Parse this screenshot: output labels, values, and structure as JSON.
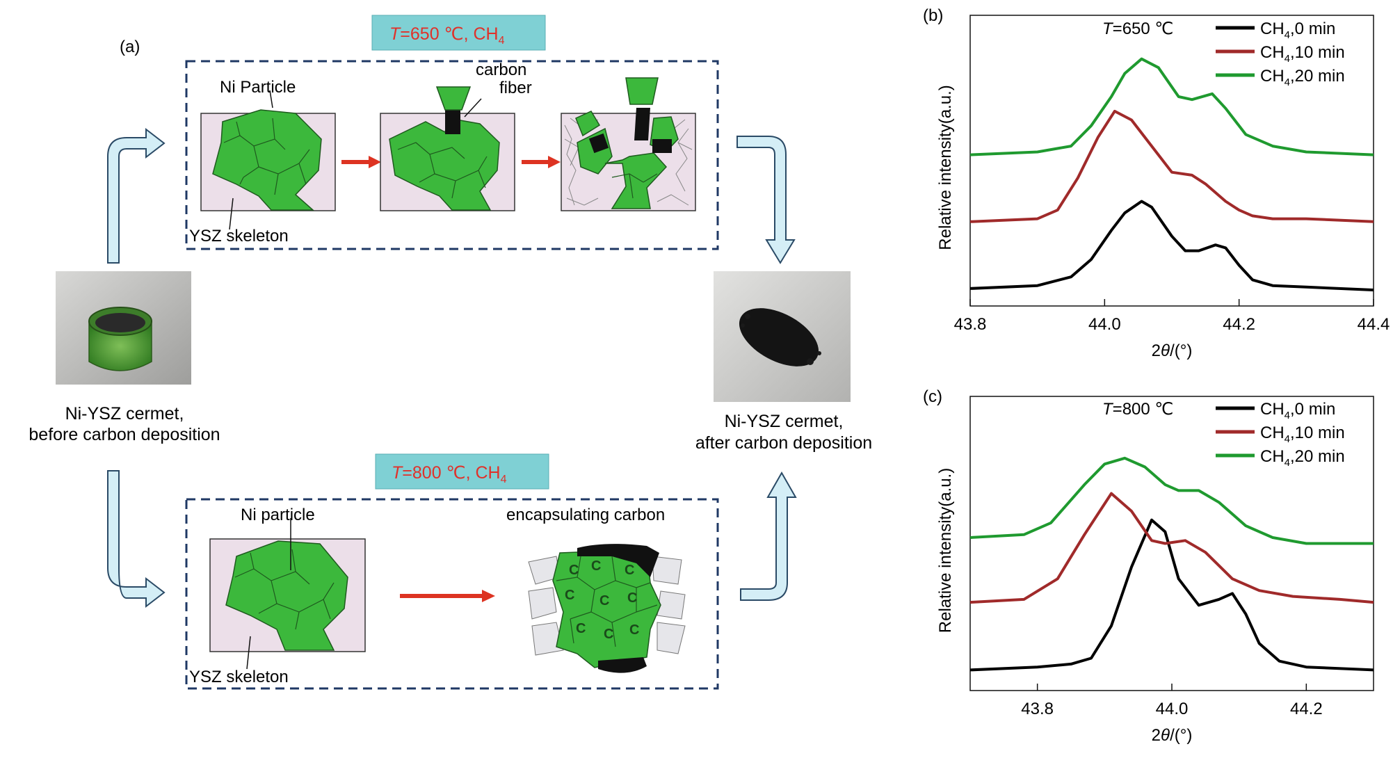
{
  "panel_a": {
    "label": "(a)",
    "top_condition": {
      "T": "T",
      "rest": "=650 ℃, CH",
      "sub": "4"
    },
    "bottom_condition": {
      "T": "T",
      "rest": "=800 ℃, CH",
      "sub": "4"
    },
    "top": {
      "ni_particle_label": "Ni Particle",
      "carbon_fiber_label_1": "carbon",
      "carbon_fiber_label_2": "fiber",
      "ysz_label": "YSZ skeleton"
    },
    "bottom": {
      "ni_particle_label": "Ni particle",
      "encapsulating_label": "encapsulating carbon",
      "ysz_label": "YSZ skeleton",
      "carbon_mark": "C"
    },
    "before_caption_1": "Ni-YSZ cermet,",
    "before_caption_2": "before carbon deposition",
    "after_caption_1": "Ni-YSZ cermet,",
    "after_caption_2": "after carbon deposition"
  },
  "colors": {
    "condition_box": "#7fd0d4",
    "condition_text": "#e0312a",
    "dashed_box": "#1f3864",
    "ni_green": "#3cb83c",
    "arrow_red": "#dd3322",
    "flow_arrow_fill": "#d4eef6",
    "flow_arrow_stroke": "#2a4a66"
  },
  "chart_data": [
    {
      "panel": "(b)",
      "type": "line",
      "condition_T": "T",
      "condition_rest": "=650 ℃",
      "xlabel_prefix": "2",
      "xlabel_theta": "θ",
      "xlabel_suffix": "/(°)",
      "ylabel": "Relative intensity(a.u.)",
      "xlim": [
        43.8,
        44.4
      ],
      "xticks": [
        "43.8",
        "44.0",
        "44.2",
        "44.4"
      ],
      "xtick_values": [
        43.8,
        44.0,
        44.2,
        44.4
      ],
      "ylim": [
        0,
        1
      ],
      "series": [
        {
          "name_base": "CH",
          "name_sub": "4",
          "name_tail": ",0 min",
          "color": "#000000",
          "x": [
            43.8,
            43.9,
            43.95,
            43.98,
            44.01,
            44.03,
            44.055,
            44.07,
            44.1,
            44.12,
            44.14,
            44.165,
            44.18,
            44.2,
            44.22,
            44.25,
            44.3,
            44.4
          ],
          "y": [
            0.06,
            0.07,
            0.1,
            0.16,
            0.26,
            0.32,
            0.36,
            0.34,
            0.24,
            0.19,
            0.19,
            0.21,
            0.2,
            0.14,
            0.09,
            0.07,
            0.065,
            0.055
          ]
        },
        {
          "name_base": "CH",
          "name_sub": "4",
          "name_tail": ",10 min",
          "color": "#a02a2a",
          "x": [
            43.8,
            43.9,
            43.93,
            43.96,
            43.99,
            44.015,
            44.04,
            44.07,
            44.1,
            44.13,
            44.15,
            44.18,
            44.2,
            44.22,
            44.25,
            44.3,
            44.4
          ],
          "y": [
            0.29,
            0.3,
            0.33,
            0.44,
            0.58,
            0.67,
            0.64,
            0.55,
            0.46,
            0.45,
            0.42,
            0.36,
            0.33,
            0.31,
            0.3,
            0.3,
            0.29
          ]
        },
        {
          "name_base": "CH",
          "name_sub": "4",
          "name_tail": ",20 min",
          "color": "#1f9a2f",
          "x": [
            43.8,
            43.9,
            43.95,
            43.98,
            44.01,
            44.03,
            44.055,
            44.08,
            44.11,
            44.13,
            44.16,
            44.18,
            44.21,
            44.25,
            44.3,
            44.4
          ],
          "y": [
            0.52,
            0.53,
            0.55,
            0.62,
            0.72,
            0.8,
            0.85,
            0.82,
            0.72,
            0.71,
            0.73,
            0.68,
            0.59,
            0.55,
            0.53,
            0.52
          ]
        }
      ]
    },
    {
      "panel": "(c)",
      "type": "line",
      "condition_T": "T",
      "condition_rest": "=800 ℃",
      "xlabel_prefix": "2",
      "xlabel_theta": "θ",
      "xlabel_suffix": "/(°)",
      "ylabel": "Relative intensity(a.u.)",
      "xlim": [
        43.7,
        44.3
      ],
      "xticks": [
        "43.8",
        "44.0",
        "44.2"
      ],
      "xtick_values": [
        43.8,
        44.0,
        44.2
      ],
      "ylim": [
        0,
        1
      ],
      "series": [
        {
          "name_base": "CH",
          "name_sub": "4",
          "name_tail": ",0 min",
          "color": "#000000",
          "x": [
            43.7,
            43.8,
            43.85,
            43.88,
            43.91,
            43.94,
            43.97,
            43.99,
            44.01,
            44.04,
            44.07,
            44.09,
            44.11,
            44.13,
            44.16,
            44.2,
            44.3
          ],
          "y": [
            0.07,
            0.08,
            0.09,
            0.11,
            0.22,
            0.42,
            0.58,
            0.54,
            0.38,
            0.29,
            0.31,
            0.33,
            0.26,
            0.16,
            0.1,
            0.08,
            0.07
          ]
        },
        {
          "name_base": "CH",
          "name_sub": "4",
          "name_tail": ",10 min",
          "color": "#a02a2a",
          "x": [
            43.7,
            43.78,
            43.83,
            43.87,
            43.91,
            43.94,
            43.97,
            43.99,
            44.02,
            44.05,
            44.09,
            44.13,
            44.18,
            44.25,
            44.3
          ],
          "y": [
            0.3,
            0.31,
            0.38,
            0.53,
            0.67,
            0.61,
            0.51,
            0.5,
            0.51,
            0.47,
            0.38,
            0.34,
            0.32,
            0.31,
            0.3
          ]
        },
        {
          "name_base": "CH",
          "name_sub": "4",
          "name_tail": ",20 min",
          "color": "#1f9a2f",
          "x": [
            43.7,
            43.78,
            43.82,
            43.87,
            43.9,
            43.93,
            43.96,
            43.99,
            44.01,
            44.04,
            44.07,
            44.11,
            44.15,
            44.2,
            44.3
          ],
          "y": [
            0.52,
            0.53,
            0.57,
            0.7,
            0.77,
            0.79,
            0.76,
            0.7,
            0.68,
            0.68,
            0.64,
            0.56,
            0.52,
            0.5,
            0.5
          ]
        }
      ]
    }
  ]
}
